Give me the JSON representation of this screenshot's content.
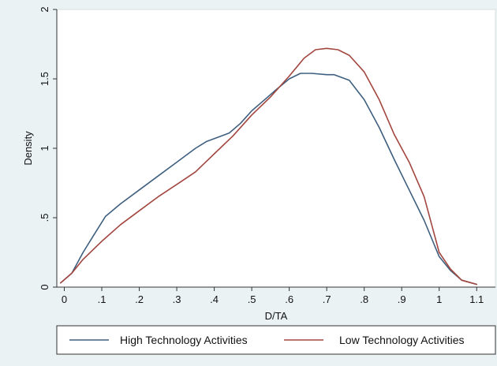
{
  "chart_data": {
    "type": "line",
    "title": "",
    "xlabel": "D/TA",
    "ylabel": "Density",
    "xlim": [
      -0.02,
      1.15
    ],
    "ylim": [
      0,
      2
    ],
    "xticks": [
      0,
      0.1,
      0.2,
      0.3,
      0.4,
      0.5,
      0.6,
      0.7,
      0.8,
      0.9,
      1.0,
      1.1
    ],
    "xtick_labels": [
      "0",
      ".1",
      ".2",
      ".3",
      ".4",
      ".5",
      ".6",
      ".7",
      ".8",
      ".9",
      "1",
      "1.1"
    ],
    "yticks": [
      0,
      0.5,
      1,
      1.5,
      2
    ],
    "ytick_labels": [
      "0",
      ".5",
      "1",
      "1.5",
      "2"
    ],
    "grid": false,
    "legend_position": "bottom",
    "series": [
      {
        "name": "High Technology Activities",
        "color": "#3f5f7f",
        "x": [
          -0.01,
          0.02,
          0.05,
          0.08,
          0.11,
          0.15,
          0.2,
          0.25,
          0.3,
          0.35,
          0.38,
          0.4,
          0.44,
          0.47,
          0.5,
          0.53,
          0.56,
          0.6,
          0.63,
          0.66,
          0.7,
          0.72,
          0.76,
          0.8,
          0.84,
          0.88,
          0.92,
          0.96,
          1.0,
          1.03,
          1.06,
          1.1
        ],
        "y": [
          0.03,
          0.1,
          0.25,
          0.38,
          0.51,
          0.6,
          0.7,
          0.8,
          0.9,
          1.0,
          1.05,
          1.07,
          1.11,
          1.18,
          1.27,
          1.34,
          1.41,
          1.5,
          1.54,
          1.54,
          1.53,
          1.53,
          1.49,
          1.35,
          1.15,
          0.92,
          0.7,
          0.48,
          0.22,
          0.12,
          0.05,
          0.02
        ]
      },
      {
        "name": "Low Technology Activities",
        "color": "#a2463f",
        "x": [
          -0.01,
          0.02,
          0.05,
          0.1,
          0.15,
          0.2,
          0.25,
          0.3,
          0.35,
          0.4,
          0.45,
          0.5,
          0.55,
          0.6,
          0.64,
          0.67,
          0.7,
          0.73,
          0.76,
          0.8,
          0.84,
          0.88,
          0.92,
          0.96,
          0.98,
          1.0,
          1.03,
          1.06,
          1.1
        ],
        "y": [
          0.03,
          0.1,
          0.2,
          0.33,
          0.45,
          0.55,
          0.65,
          0.74,
          0.83,
          0.96,
          1.09,
          1.24,
          1.37,
          1.52,
          1.65,
          1.71,
          1.72,
          1.71,
          1.67,
          1.55,
          1.35,
          1.1,
          0.9,
          0.65,
          0.45,
          0.25,
          0.13,
          0.05,
          0.02
        ]
      }
    ]
  }
}
